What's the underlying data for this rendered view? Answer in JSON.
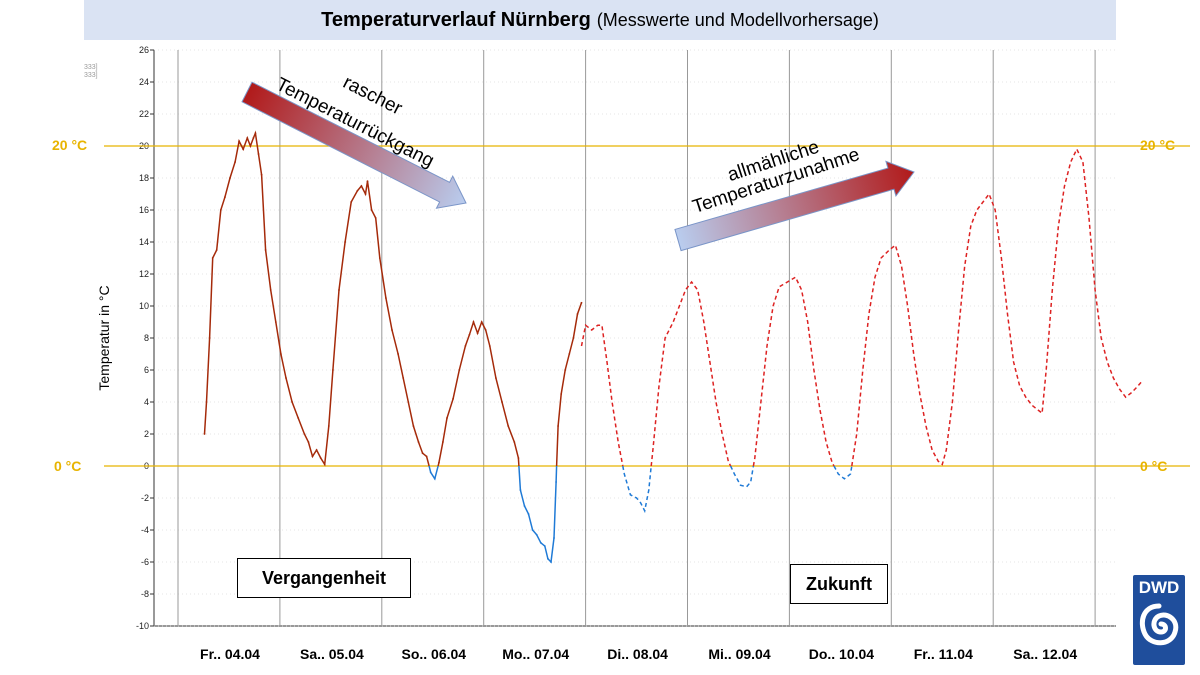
{
  "title": {
    "bold": "Temperaturverlauf Nürnberg",
    "sub": "(Messwerte und Modellvorhersage)"
  },
  "ylabel": "Temperatur in °C",
  "reference_lines": {
    "warm_label": "20 °C",
    "zero_label": "0 °C",
    "color": "#e8b400"
  },
  "annotations": {
    "decrease": "rascher\nTemperaturrückgang",
    "decrease_line1": "rascher",
    "decrease_line2": "Temperaturrückgang",
    "increase_line1": "allmähliche",
    "increase_line2": "Temperaturzunahme",
    "past": "Vergangenheit",
    "future": "Zukunft"
  },
  "logo": {
    "text": "DWD"
  },
  "tiny_marks": [
    "333]",
    "333]"
  ],
  "colors": {
    "measured_warm": "#a52a0a",
    "measured_cold": "#1f7ad6",
    "forecast_warm": "#dd2222",
    "forecast_cold": "#1f7ad6",
    "gridline": "#cccccc",
    "dayline": "#999999"
  },
  "chart_data": {
    "type": "line",
    "title": "Temperaturverlauf Nürnberg (Messwerte und Modellvorhersage)",
    "ylabel": "Temperatur in °C",
    "xlabel": "",
    "ylim": [
      -10,
      26
    ],
    "yticks": [
      -10,
      -8,
      -6,
      -4,
      -2,
      0,
      2,
      4,
      6,
      8,
      10,
      12,
      14,
      16,
      18,
      20,
      22,
      24,
      26
    ],
    "xlim": [
      0,
      9.3
    ],
    "categories": [
      "Fr.. 04.04",
      "Sa.. 05.04",
      "So.. 06.04",
      "Mo.. 07.04",
      "Di.. 08.04",
      "Mi.. 09.04",
      "Do.. 10.04",
      "Fr.. 11.04",
      "Sa.. 12.04"
    ],
    "grid": true,
    "series": [
      {
        "kind": "measured",
        "points": [
          [
            0.0,
            2.0
          ],
          [
            0.02,
            4.0
          ],
          [
            0.05,
            8.0
          ],
          [
            0.08,
            13.0
          ],
          [
            0.12,
            13.5
          ],
          [
            0.16,
            16.0
          ],
          [
            0.2,
            16.8
          ],
          [
            0.25,
            18.0
          ],
          [
            0.3,
            19.0
          ],
          [
            0.34,
            20.3
          ],
          [
            0.38,
            19.8
          ],
          [
            0.42,
            20.5
          ],
          [
            0.45,
            20.0
          ],
          [
            0.48,
            20.5
          ],
          [
            0.5,
            20.8
          ],
          [
            0.53,
            19.5
          ],
          [
            0.56,
            18.2
          ],
          [
            0.6,
            13.5
          ],
          [
            0.65,
            11.0
          ],
          [
            0.7,
            9.0
          ],
          [
            0.75,
            7.0
          ],
          [
            0.8,
            5.5
          ],
          [
            0.86,
            4.0
          ],
          [
            0.92,
            3.0
          ],
          [
            0.98,
            2.0
          ],
          [
            1.02,
            1.5
          ],
          [
            1.06,
            0.6
          ],
          [
            1.1,
            1.0
          ],
          [
            1.14,
            0.5
          ],
          [
            1.18,
            0.1
          ],
          [
            1.22,
            2.5
          ],
          [
            1.26,
            6.0
          ],
          [
            1.32,
            11.0
          ],
          [
            1.38,
            14.0
          ],
          [
            1.44,
            16.5
          ],
          [
            1.5,
            17.2
          ],
          [
            1.54,
            17.5
          ],
          [
            1.58,
            17.0
          ],
          [
            1.6,
            17.8
          ],
          [
            1.64,
            16.0
          ],
          [
            1.68,
            15.5
          ],
          [
            1.72,
            13.0
          ],
          [
            1.78,
            10.5
          ],
          [
            1.84,
            8.5
          ],
          [
            1.9,
            7.0
          ],
          [
            1.95,
            5.5
          ],
          [
            2.0,
            4.0
          ],
          [
            2.05,
            2.5
          ],
          [
            2.1,
            1.5
          ],
          [
            2.14,
            0.8
          ],
          [
            2.18,
            0.6
          ],
          [
            2.22,
            -0.4
          ],
          [
            2.26,
            -0.8
          ],
          [
            2.3,
            0.2
          ],
          [
            2.34,
            1.5
          ],
          [
            2.38,
            3.0
          ],
          [
            2.44,
            4.2
          ],
          [
            2.5,
            6.0
          ],
          [
            2.56,
            7.5
          ],
          [
            2.6,
            8.2
          ],
          [
            2.64,
            9.0
          ],
          [
            2.68,
            8.3
          ],
          [
            2.72,
            9.0
          ],
          [
            2.76,
            8.5
          ],
          [
            2.8,
            7.5
          ],
          [
            2.86,
            5.5
          ],
          [
            2.92,
            4.0
          ],
          [
            2.98,
            2.5
          ],
          [
            3.04,
            1.5
          ],
          [
            3.08,
            0.5
          ],
          [
            3.1,
            -1.5
          ],
          [
            3.14,
            -2.5
          ],
          [
            3.18,
            -3.0
          ],
          [
            3.22,
            -4.0
          ],
          [
            3.26,
            -4.3
          ],
          [
            3.3,
            -4.8
          ],
          [
            3.34,
            -5.0
          ],
          [
            3.37,
            -5.8
          ],
          [
            3.4,
            -6.0
          ],
          [
            3.43,
            -4.5
          ],
          [
            3.45,
            -1.0
          ],
          [
            3.47,
            2.5
          ],
          [
            3.5,
            4.5
          ],
          [
            3.54,
            6.0
          ],
          [
            3.58,
            7.0
          ],
          [
            3.62,
            8.0
          ],
          [
            3.66,
            9.5
          ],
          [
            3.7,
            10.2
          ]
        ]
      },
      {
        "kind": "forecast",
        "points": [
          [
            3.7,
            7.5
          ],
          [
            3.74,
            8.8
          ],
          [
            3.8,
            8.5
          ],
          [
            3.86,
            8.8
          ],
          [
            3.9,
            8.8
          ],
          [
            3.95,
            6.5
          ],
          [
            4.0,
            4.0
          ],
          [
            4.06,
            1.5
          ],
          [
            4.12,
            -0.5
          ],
          [
            4.18,
            -1.8
          ],
          [
            4.24,
            -2.0
          ],
          [
            4.28,
            -2.3
          ],
          [
            4.32,
            -2.8
          ],
          [
            4.36,
            -1.5
          ],
          [
            4.4,
            1.0
          ],
          [
            4.46,
            5.0
          ],
          [
            4.52,
            8.0
          ],
          [
            4.6,
            9.0
          ],
          [
            4.66,
            10.0
          ],
          [
            4.72,
            11.0
          ],
          [
            4.78,
            11.5
          ],
          [
            4.84,
            11.0
          ],
          [
            4.9,
            9.0
          ],
          [
            4.96,
            6.5
          ],
          [
            5.02,
            4.0
          ],
          [
            5.08,
            2.0
          ],
          [
            5.14,
            0.3
          ],
          [
            5.2,
            -0.5
          ],
          [
            5.26,
            -1.2
          ],
          [
            5.32,
            -1.3
          ],
          [
            5.36,
            -1.0
          ],
          [
            5.4,
            0.5
          ],
          [
            5.46,
            4.0
          ],
          [
            5.52,
            7.5
          ],
          [
            5.58,
            10.0
          ],
          [
            5.64,
            11.2
          ],
          [
            5.72,
            11.5
          ],
          [
            5.8,
            11.8
          ],
          [
            5.86,
            11.0
          ],
          [
            5.92,
            9.0
          ],
          [
            5.98,
            6.0
          ],
          [
            6.04,
            3.5
          ],
          [
            6.1,
            1.5
          ],
          [
            6.16,
            0.2
          ],
          [
            6.22,
            -0.5
          ],
          [
            6.28,
            -0.8
          ],
          [
            6.34,
            -0.5
          ],
          [
            6.4,
            2.0
          ],
          [
            6.46,
            6.0
          ],
          [
            6.52,
            9.5
          ],
          [
            6.58,
            11.8
          ],
          [
            6.64,
            13.0
          ],
          [
            6.72,
            13.5
          ],
          [
            6.78,
            13.8
          ],
          [
            6.84,
            12.5
          ],
          [
            6.9,
            10.0
          ],
          [
            6.96,
            7.0
          ],
          [
            7.02,
            4.5
          ],
          [
            7.08,
            2.5
          ],
          [
            7.14,
            1.0
          ],
          [
            7.2,
            0.3
          ],
          [
            7.24,
            0.1
          ],
          [
            7.28,
            1.0
          ],
          [
            7.34,
            4.0
          ],
          [
            7.4,
            8.5
          ],
          [
            7.46,
            12.5
          ],
          [
            7.52,
            15.0
          ],
          [
            7.58,
            16.0
          ],
          [
            7.64,
            16.5
          ],
          [
            7.7,
            17.0
          ],
          [
            7.76,
            16.0
          ],
          [
            7.82,
            13.0
          ],
          [
            7.88,
            9.5
          ],
          [
            7.94,
            6.5
          ],
          [
            8.0,
            5.0
          ],
          [
            8.06,
            4.3
          ],
          [
            8.12,
            3.8
          ],
          [
            8.18,
            3.5
          ],
          [
            8.22,
            3.3
          ],
          [
            8.26,
            6.0
          ],
          [
            8.32,
            11.0
          ],
          [
            8.38,
            15.0
          ],
          [
            8.44,
            17.5
          ],
          [
            8.5,
            19.0
          ],
          [
            8.56,
            19.8
          ],
          [
            8.62,
            19.0
          ],
          [
            8.68,
            15.5
          ],
          [
            8.74,
            11.0
          ],
          [
            8.8,
            8.0
          ],
          [
            8.86,
            6.5
          ],
          [
            8.92,
            5.5
          ],
          [
            8.98,
            4.8
          ],
          [
            9.04,
            4.3
          ],
          [
            9.1,
            4.6
          ],
          [
            9.16,
            5.0
          ],
          [
            9.2,
            5.3
          ]
        ]
      }
    ]
  }
}
